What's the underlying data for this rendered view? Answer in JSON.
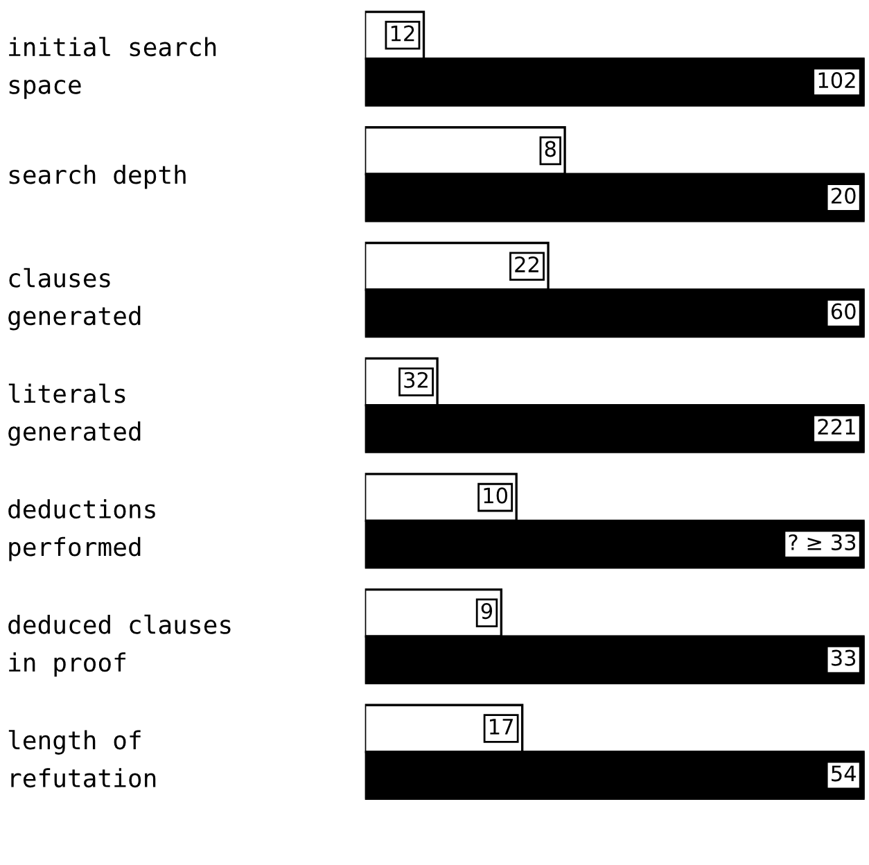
{
  "chart_data": [
    {
      "type": "bar",
      "orientation": "horizontal",
      "categories": [
        "initial search\nspace"
      ],
      "xlim": [
        0,
        102
      ],
      "tick_labels": "y",
      "series": [
        {
          "color": "#ffffff",
          "values": [
            12
          ],
          "value_labels": [
            "12"
          ]
        },
        {
          "color": "#000000",
          "values": [
            102
          ],
          "value_labels": [
            "102"
          ]
        }
      ]
    },
    {
      "type": "bar",
      "orientation": "horizontal",
      "categories": [
        "search depth"
      ],
      "xlim": [
        0,
        20
      ],
      "tick_labels": "y",
      "series": [
        {
          "color": "#ffffff",
          "values": [
            8
          ],
          "value_labels": [
            "8"
          ]
        },
        {
          "color": "#000000",
          "values": [
            20
          ],
          "value_labels": [
            "20"
          ]
        }
      ]
    },
    {
      "type": "bar",
      "orientation": "horizontal",
      "categories": [
        "clauses\ngenerated"
      ],
      "xlim": [
        0,
        60
      ],
      "tick_labels": "y",
      "series": [
        {
          "color": "#ffffff",
          "values": [
            22
          ],
          "value_labels": [
            "22"
          ]
        },
        {
          "color": "#000000",
          "values": [
            60
          ],
          "value_labels": [
            "60"
          ]
        }
      ]
    },
    {
      "type": "bar",
      "orientation": "horizontal",
      "categories": [
        "literals\ngenerated"
      ],
      "xlim": [
        0,
        221
      ],
      "tick_labels": "y",
      "series": [
        {
          "color": "#ffffff",
          "values": [
            32
          ],
          "value_labels": [
            "32"
          ]
        },
        {
          "color": "#000000",
          "values": [
            221
          ],
          "value_labels": [
            "221"
          ]
        }
      ]
    },
    {
      "type": "bar",
      "orientation": "horizontal",
      "categories": [
        "deductions\nperformed"
      ],
      "xlim": [
        0,
        33
      ],
      "tick_labels": "y",
      "series": [
        {
          "color": "#ffffff",
          "values": [
            10
          ],
          "value_labels": [
            "10"
          ]
        },
        {
          "color": "#000000",
          "values": [
            33
          ],
          "value_labels": [
            "? ≥ 33"
          ]
        }
      ]
    },
    {
      "type": "bar",
      "orientation": "horizontal",
      "categories": [
        "deduced clauses\nin proof"
      ],
      "xlim": [
        0,
        33
      ],
      "tick_labels": "y",
      "series": [
        {
          "color": "#ffffff",
          "values": [
            9
          ],
          "value_labels": [
            "9"
          ]
        },
        {
          "color": "#000000",
          "values": [
            33
          ],
          "value_labels": [
            "33"
          ]
        }
      ]
    },
    {
      "type": "bar",
      "orientation": "horizontal",
      "categories": [
        "length of\nrefutation"
      ],
      "xlim": [
        0,
        54
      ],
      "tick_labels": "y",
      "series": [
        {
          "color": "#ffffff",
          "values": [
            17
          ],
          "value_labels": [
            "17"
          ]
        },
        {
          "color": "#000000",
          "values": [
            54
          ],
          "value_labels": [
            "54"
          ]
        }
      ]
    }
  ]
}
